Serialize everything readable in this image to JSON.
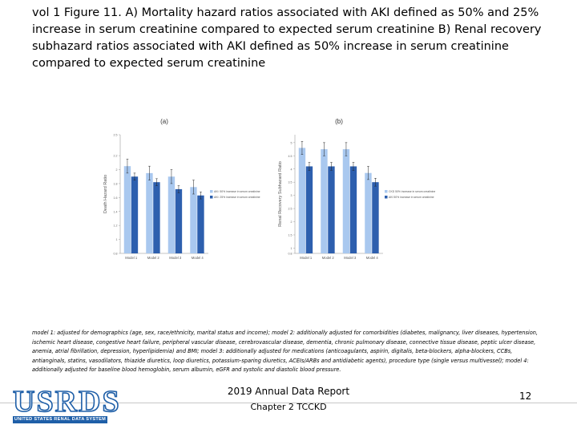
{
  "slide": {
    "title": "vol 1 Figure 11. A) Mortality hazard ratios associated with AKI defined as 50% and 25% increase in serum creatinine compared to expected serum creatinine B) Renal recovery subhazard ratios associated with AKI defined as 50% increase in serum creatinine compared to expected serum creatinine",
    "footnote": "model 1: adjusted for demographics (age, sex, race/ethnicity, marital status and income); model 2: additionally adjusted for comorbidities (diabetes, malignancy, liver diseases, hypertension, ischemic heart disease, congestive heart failure, peripheral vascular disease, cerebrovascular disease, dementia, chronic pulmonary disease, connective tissue disease, peptic ulcer disease, anemia, atrial fibrillation, depression, hyperlipidemia) and BMI; model 3: additionally adjusted for medications (anticoagulants, aspirin, digitalis, beta-blockers, alpha-blockers, CCBs, antianginals, statins, vasodilators, thiazide diuretics, loop diuretics, potassium-sparing diuretics, ACEIs/ARBs and antidiabetic agents), procedure type (single versus multivessel); model 4: additionally adjusted for baseline blood hemoglobin, serum albumin, eGFR and systolic and diastolic blood pressure."
  },
  "footer": {
    "logo_text": "USRDS",
    "logo_subtitle": "UNITED STATES RENAL DATA SYSTEM",
    "report": "2019 Annual Data Report",
    "chapter": "Chapter 2 TCCKD",
    "page_number": "12"
  },
  "chart_data": [
    {
      "type": "bar",
      "panel_label": "(a)",
      "ylabel": "Death Hazard Ratio",
      "ylim": [
        0.8,
        2.5
      ],
      "yticks": [
        0.8,
        1,
        1.2,
        1.4,
        1.6,
        1.8,
        2,
        2.2,
        2.5
      ],
      "categories": [
        "Model 1",
        "Model 2",
        "Model 3",
        "Model 4"
      ],
      "series": [
        {
          "name": "AKI: 50% increase in serum creatinine",
          "color": "#a9c8ef",
          "values": [
            2.05,
            1.95,
            1.9,
            1.75
          ],
          "ci_low": [
            1.95,
            1.85,
            1.8,
            1.65
          ],
          "ci_high": [
            2.15,
            2.05,
            2.0,
            1.85
          ]
        },
        {
          "name": "AKI: 25% increase in serum creatinine",
          "color": "#2d5fae",
          "values": [
            1.9,
            1.82,
            1.72,
            1.63
          ],
          "ci_low": [
            1.85,
            1.77,
            1.67,
            1.58
          ],
          "ci_high": [
            1.95,
            1.87,
            1.77,
            1.68
          ]
        }
      ],
      "legend_position": "right",
      "grid": false
    },
    {
      "type": "bar",
      "panel_label": "(b)",
      "ylabel": "Renal Recovery Subhazard Ratio",
      "ylim": [
        0.8,
        5.3
      ],
      "yticks": [
        0.8,
        1,
        1.5,
        2,
        2.5,
        3,
        3.5,
        4,
        4.5,
        5
      ],
      "categories": [
        "Model 1",
        "Model 2",
        "Model 3",
        "Model 4"
      ],
      "series": [
        {
          "name": "CKD 50% increase in serum creatinine",
          "color": "#a9c8ef",
          "values": [
            4.8,
            4.75,
            4.75,
            3.85
          ],
          "ci_low": [
            4.55,
            4.5,
            4.5,
            3.6
          ],
          "ci_high": [
            5.05,
            5.0,
            5.0,
            4.1
          ]
        },
        {
          "name": "AKI 50% increase in serum creatinine",
          "color": "#2d5fae",
          "values": [
            4.1,
            4.1,
            4.1,
            3.5
          ],
          "ci_low": [
            3.95,
            3.95,
            3.95,
            3.35
          ],
          "ci_high": [
            4.25,
            4.25,
            4.25,
            3.65
          ]
        }
      ],
      "legend_position": "right",
      "grid": false
    }
  ]
}
